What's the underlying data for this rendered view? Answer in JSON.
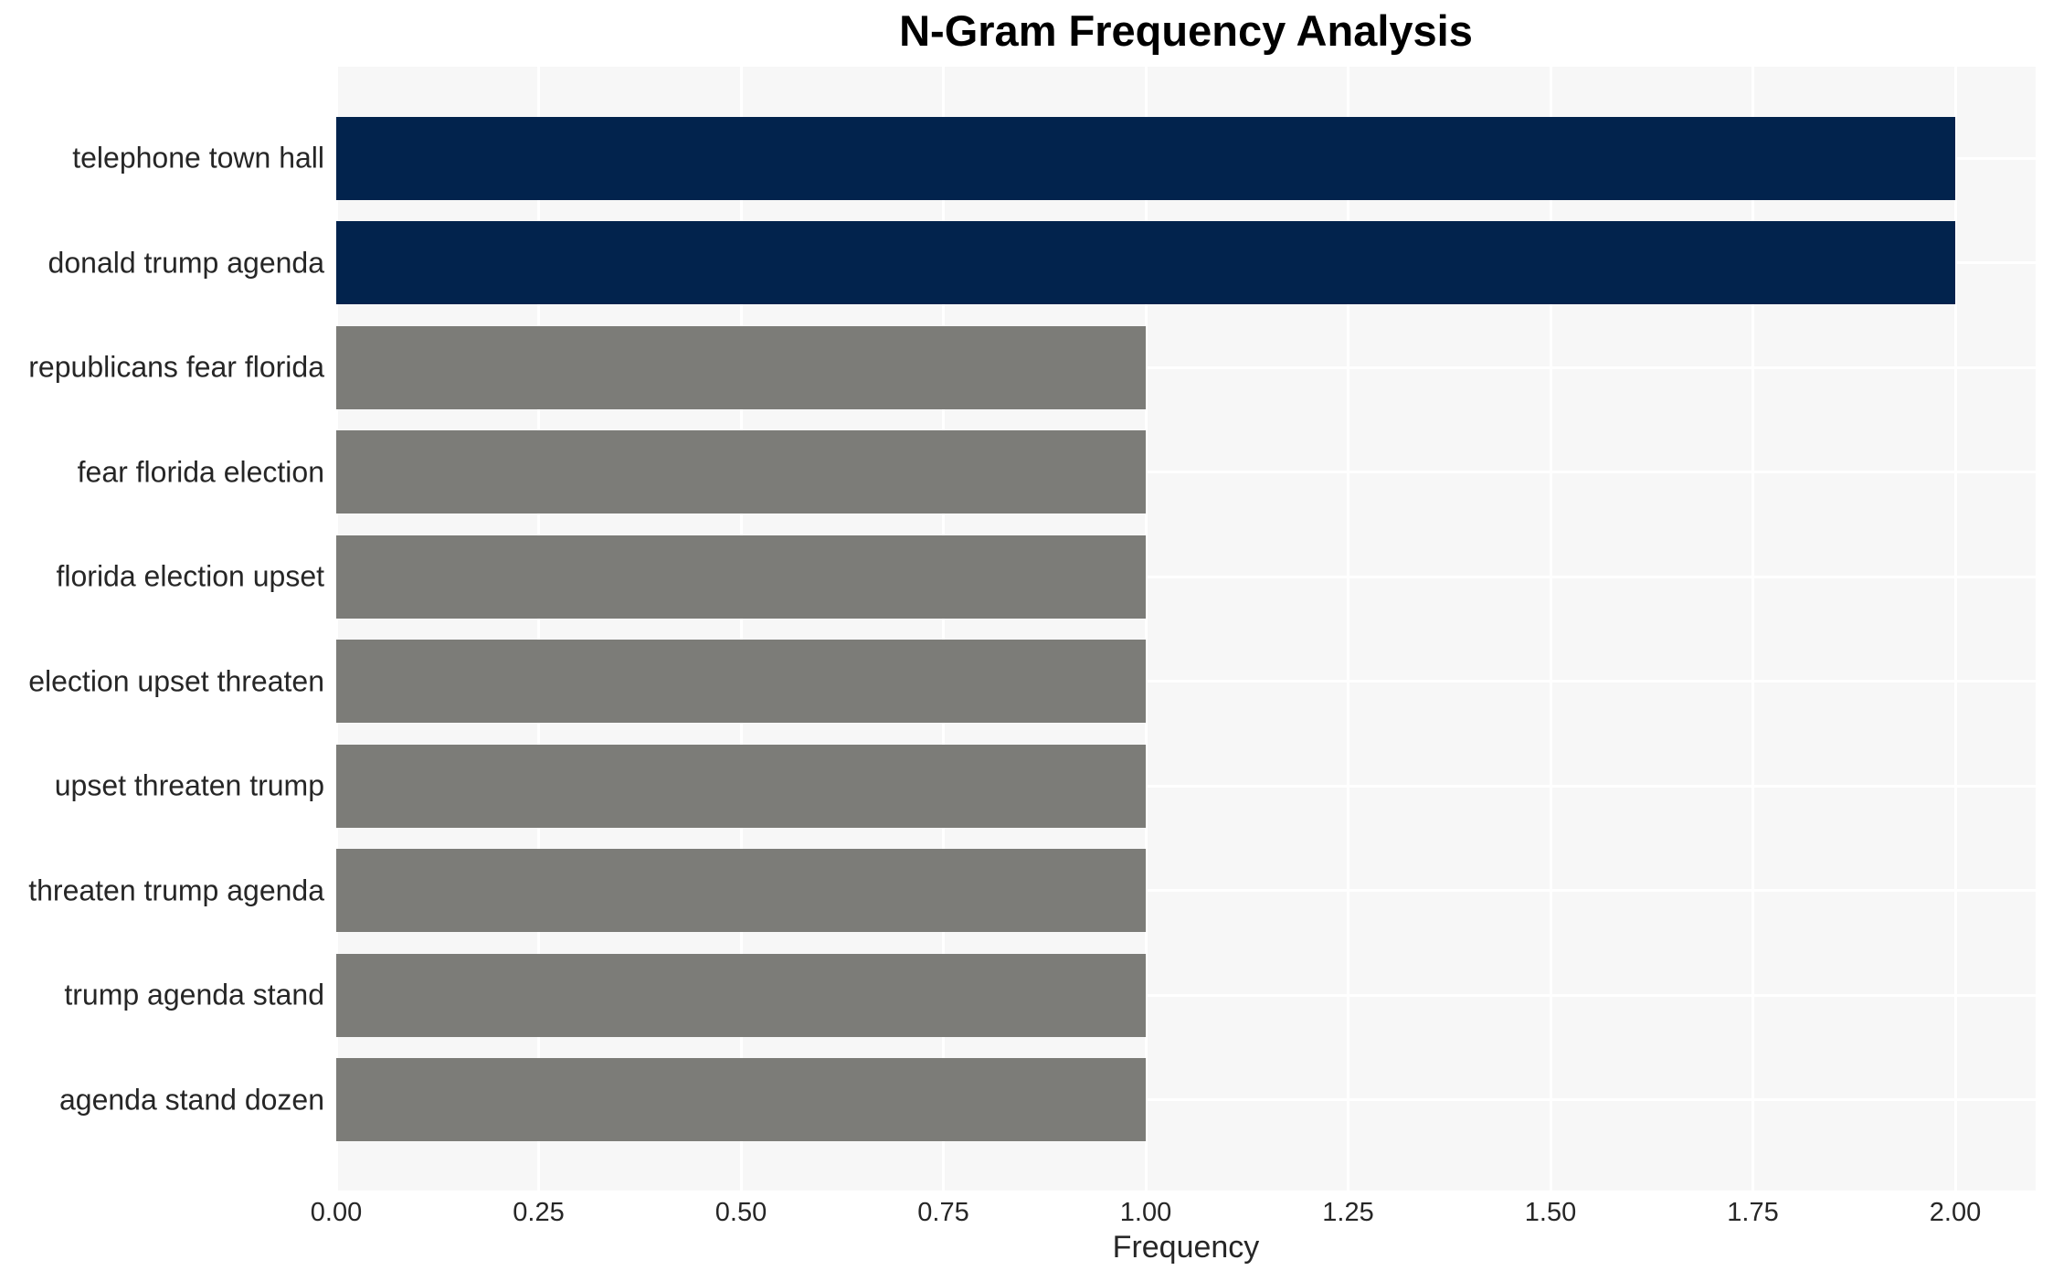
{
  "chart_data": {
    "type": "bar",
    "orientation": "horizontal",
    "title": "N-Gram Frequency Analysis",
    "xlabel": "Frequency",
    "ylabel": "",
    "categories": [
      "telephone town hall",
      "donald trump agenda",
      "republicans fear florida",
      "fear florida election",
      "florida election upset",
      "election upset threaten",
      "upset threaten trump",
      "threaten trump agenda",
      "trump agenda stand",
      "agenda stand dozen"
    ],
    "values": [
      2,
      2,
      1,
      1,
      1,
      1,
      1,
      1,
      1,
      1
    ],
    "bar_colors": [
      "#02234D",
      "#02234D",
      "#7C7C78",
      "#7C7C78",
      "#7C7C78",
      "#7C7C78",
      "#7C7C78",
      "#7C7C78",
      "#7C7C78",
      "#7C7C78"
    ],
    "xticks": {
      "values": [
        0,
        0.25,
        0.5,
        0.75,
        1.0,
        1.25,
        1.5,
        1.75,
        2.0
      ],
      "labels": [
        "0.00",
        "0.25",
        "0.50",
        "0.75",
        "1.00",
        "1.25",
        "1.50",
        "1.75",
        "2.00"
      ]
    },
    "xlim": [
      0,
      2.1
    ],
    "grid": true,
    "legend": "none",
    "colors": {
      "bar_highlight": "#02234D",
      "bar_default": "#7C7C78",
      "panel_background": "#F7F7F7",
      "gridline": "#FFFFFF",
      "tick_text": "#262626",
      "title_text": "#000000"
    }
  }
}
